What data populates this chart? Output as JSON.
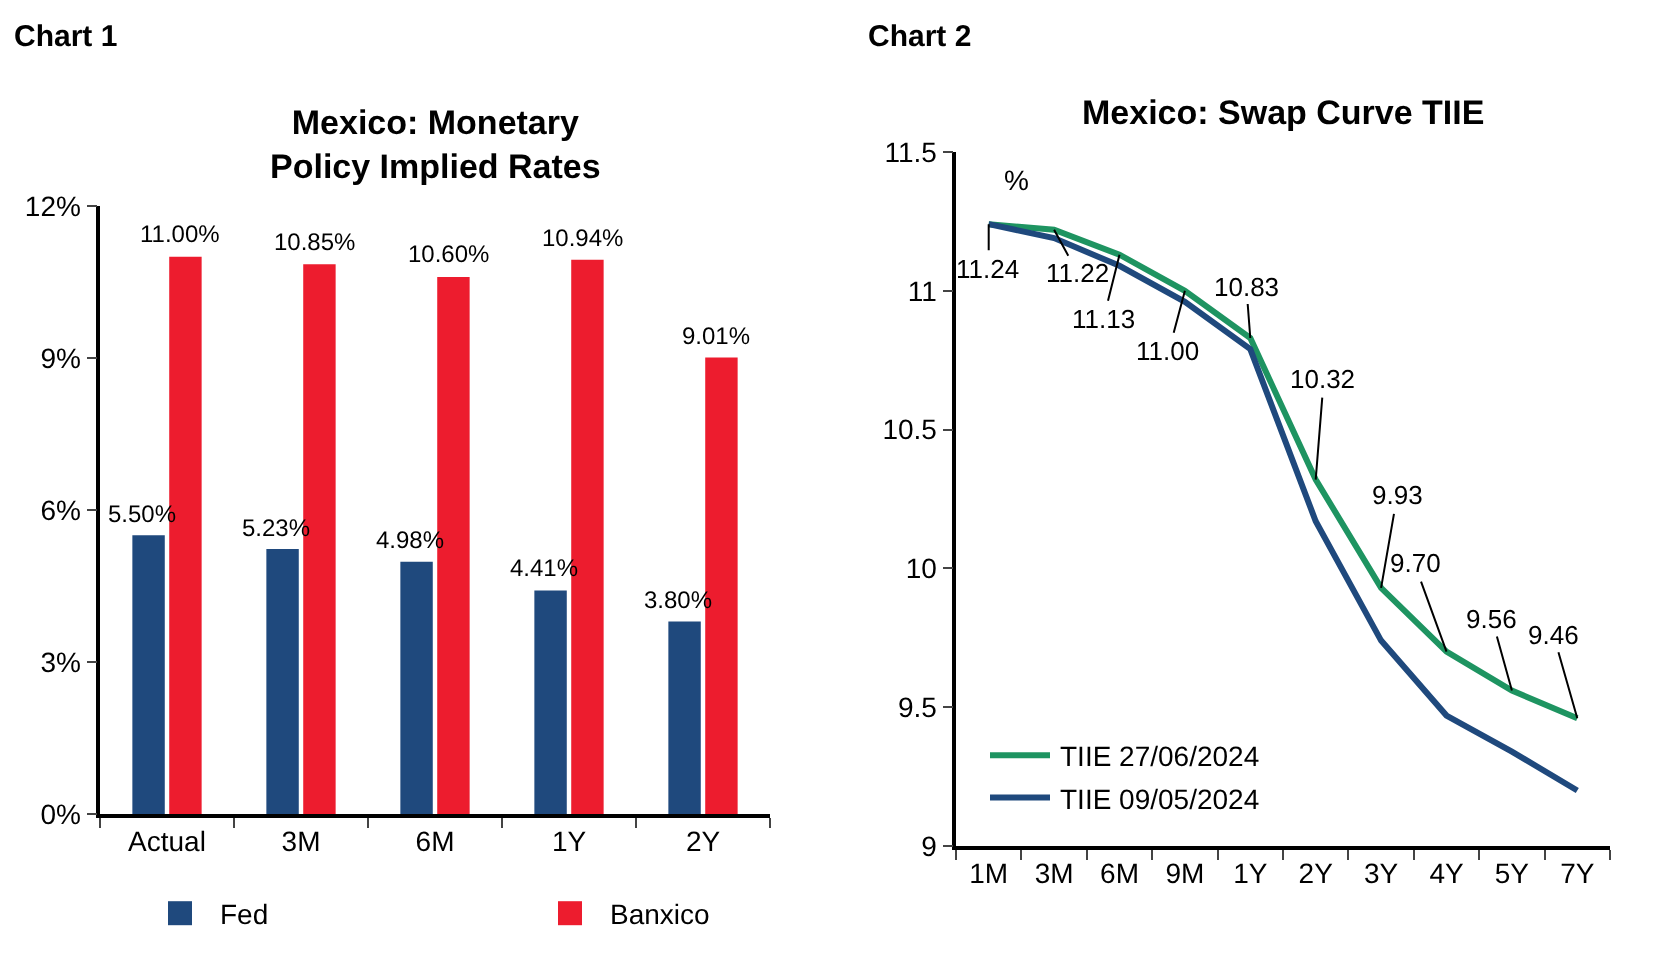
{
  "chart_data": [
    {
      "type": "bar",
      "annotations": [
        "Chart 1"
      ],
      "title": "Mexico: Monetary\nPolicy Implied Rates",
      "categories": [
        "Actual",
        "3M",
        "6M",
        "1Y",
        "2Y"
      ],
      "series": [
        {
          "name": "Fed",
          "color": "#1f497d",
          "values": [
            5.5,
            5.23,
            4.98,
            4.41,
            3.8
          ],
          "value_labels": [
            "5.50%",
            "5.23%",
            "4.98%",
            "4.41%",
            "3.80%"
          ]
        },
        {
          "name": "Banxico",
          "color": "#ed1c2e",
          "values": [
            11.0,
            10.85,
            10.6,
            10.94,
            9.01
          ],
          "value_labels": [
            "11.00%",
            "10.85%",
            "10.60%",
            "10.94%",
            "9.01%"
          ]
        }
      ],
      "ylim": [
        0,
        12
      ],
      "yticks": [
        {
          "value": 0,
          "label": "0%"
        },
        {
          "value": 3,
          "label": "3%"
        },
        {
          "value": 6,
          "label": "6%"
        },
        {
          "value": 9,
          "label": "9%"
        },
        {
          "value": 12,
          "label": "12%"
        }
      ],
      "legend": "bottom"
    },
    {
      "type": "line",
      "annotations": [
        "Chart 2"
      ],
      "title": "Mexico: Swap Curve TIIE",
      "ylabel": "%",
      "categories": [
        "1M",
        "3M",
        "6M",
        "9M",
        "1Y",
        "2Y",
        "3Y",
        "4Y",
        "5Y",
        "7Y"
      ],
      "series": [
        {
          "name": "TIIE 27/06/2024",
          "color": "#1e9461",
          "values": [
            11.24,
            11.22,
            11.13,
            11.0,
            10.83,
            10.32,
            9.93,
            9.7,
            9.56,
            9.46
          ],
          "value_labels": [
            "11.24",
            "11.22",
            "11.13",
            "11.00",
            "10.83",
            "10.32",
            "9.93",
            "9.70",
            "9.56",
            "9.46"
          ]
        },
        {
          "name": "TIIE 09/05/2024",
          "color": "#1f497d",
          "values": [
            11.24,
            11.19,
            11.09,
            10.96,
            10.79,
            10.17,
            9.74,
            9.47,
            9.34,
            9.2
          ]
        }
      ],
      "ylim": [
        9,
        11.5
      ],
      "yticks": [
        9,
        9.5,
        10,
        10.5,
        11,
        11.5
      ],
      "legend": "bottom left",
      "marker": "none",
      "line_style": "solid"
    }
  ]
}
